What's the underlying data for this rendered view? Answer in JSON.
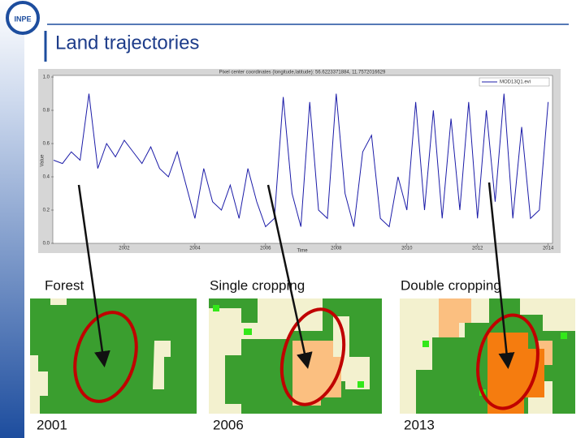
{
  "logo": "INPE",
  "header": {
    "title": "Land trajectories"
  },
  "chart_data": {
    "type": "line",
    "title": "Pixel center coordinates (longitude,latitude): 56.6223371884, 11.7572016629",
    "x_label": "Time",
    "y_label": "Value",
    "xlim": [
      2000,
      2014.1
    ],
    "xticks": [
      2002,
      2004,
      2006,
      2008,
      2010,
      2012,
      2014
    ],
    "ylim": [
      0,
      1
    ],
    "yticks": [
      {
        "value": 0,
        "label": "0.0"
      },
      0.2,
      0.4,
      0.6,
      0.8,
      {
        "value": 1,
        "label": "1.0"
      }
    ],
    "x": [
      2000,
      2000.25,
      2000.5,
      2000.75,
      2001,
      2001.25,
      2001.5,
      2001.75,
      2002,
      2002.25,
      2002.5,
      2002.75,
      2003,
      2003.25,
      2003.5,
      2003.75,
      2004,
      2004.25,
      2004.5,
      2004.75,
      2005,
      2005.25,
      2005.5,
      2005.75,
      2006,
      2006.25,
      2006.5,
      2006.75,
      2007,
      2007.25,
      2007.5,
      2007.75,
      2008,
      2008.25,
      2008.5,
      2008.75,
      2009,
      2009.25,
      2009.5,
      2009.75,
      2010,
      2010.25,
      2010.5,
      2010.75,
      2011,
      2011.25,
      2011.5,
      2011.75,
      2012,
      2012.25,
      2012.5,
      2012.75,
      2013,
      2013.25,
      2013.5,
      2013.75,
      2014
    ],
    "series": [
      {
        "name": "MOD13Q1.evi",
        "color": "#1c1ca8",
        "values": [
          0.5,
          0.48,
          0.55,
          0.5,
          0.9,
          0.45,
          0.6,
          0.52,
          0.62,
          0.55,
          0.48,
          0.58,
          0.45,
          0.4,
          0.55,
          0.35,
          0.15,
          0.45,
          0.25,
          0.2,
          0.35,
          0.15,
          0.45,
          0.25,
          0.1,
          0.15,
          0.88,
          0.3,
          0.1,
          0.85,
          0.2,
          0.15,
          0.9,
          0.3,
          0.1,
          0.55,
          0.65,
          0.15,
          0.1,
          0.4,
          0.2,
          0.85,
          0.2,
          0.8,
          0.15,
          0.75,
          0.2,
          0.85,
          0.15,
          0.8,
          0.25,
          0.9,
          0.15,
          0.7,
          0.15,
          0.2,
          0.85
        ]
      }
    ]
  },
  "panels": [
    {
      "label": "Forest",
      "year": "2001"
    },
    {
      "label": "Single cropping",
      "year": "2006"
    },
    {
      "label": "Double cropping",
      "year": "2013"
    }
  ]
}
